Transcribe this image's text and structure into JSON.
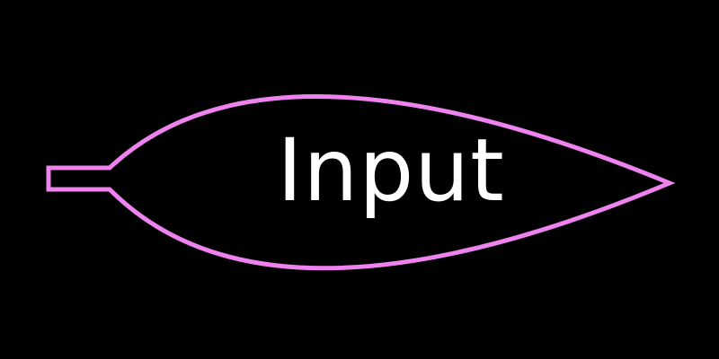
{
  "node": {
    "label": "Input",
    "shape": "leaf-connector",
    "stroke_color": "#ee82ee",
    "fill_color": "#000000",
    "text_color": "#ffffff"
  },
  "background_color": "#000000"
}
